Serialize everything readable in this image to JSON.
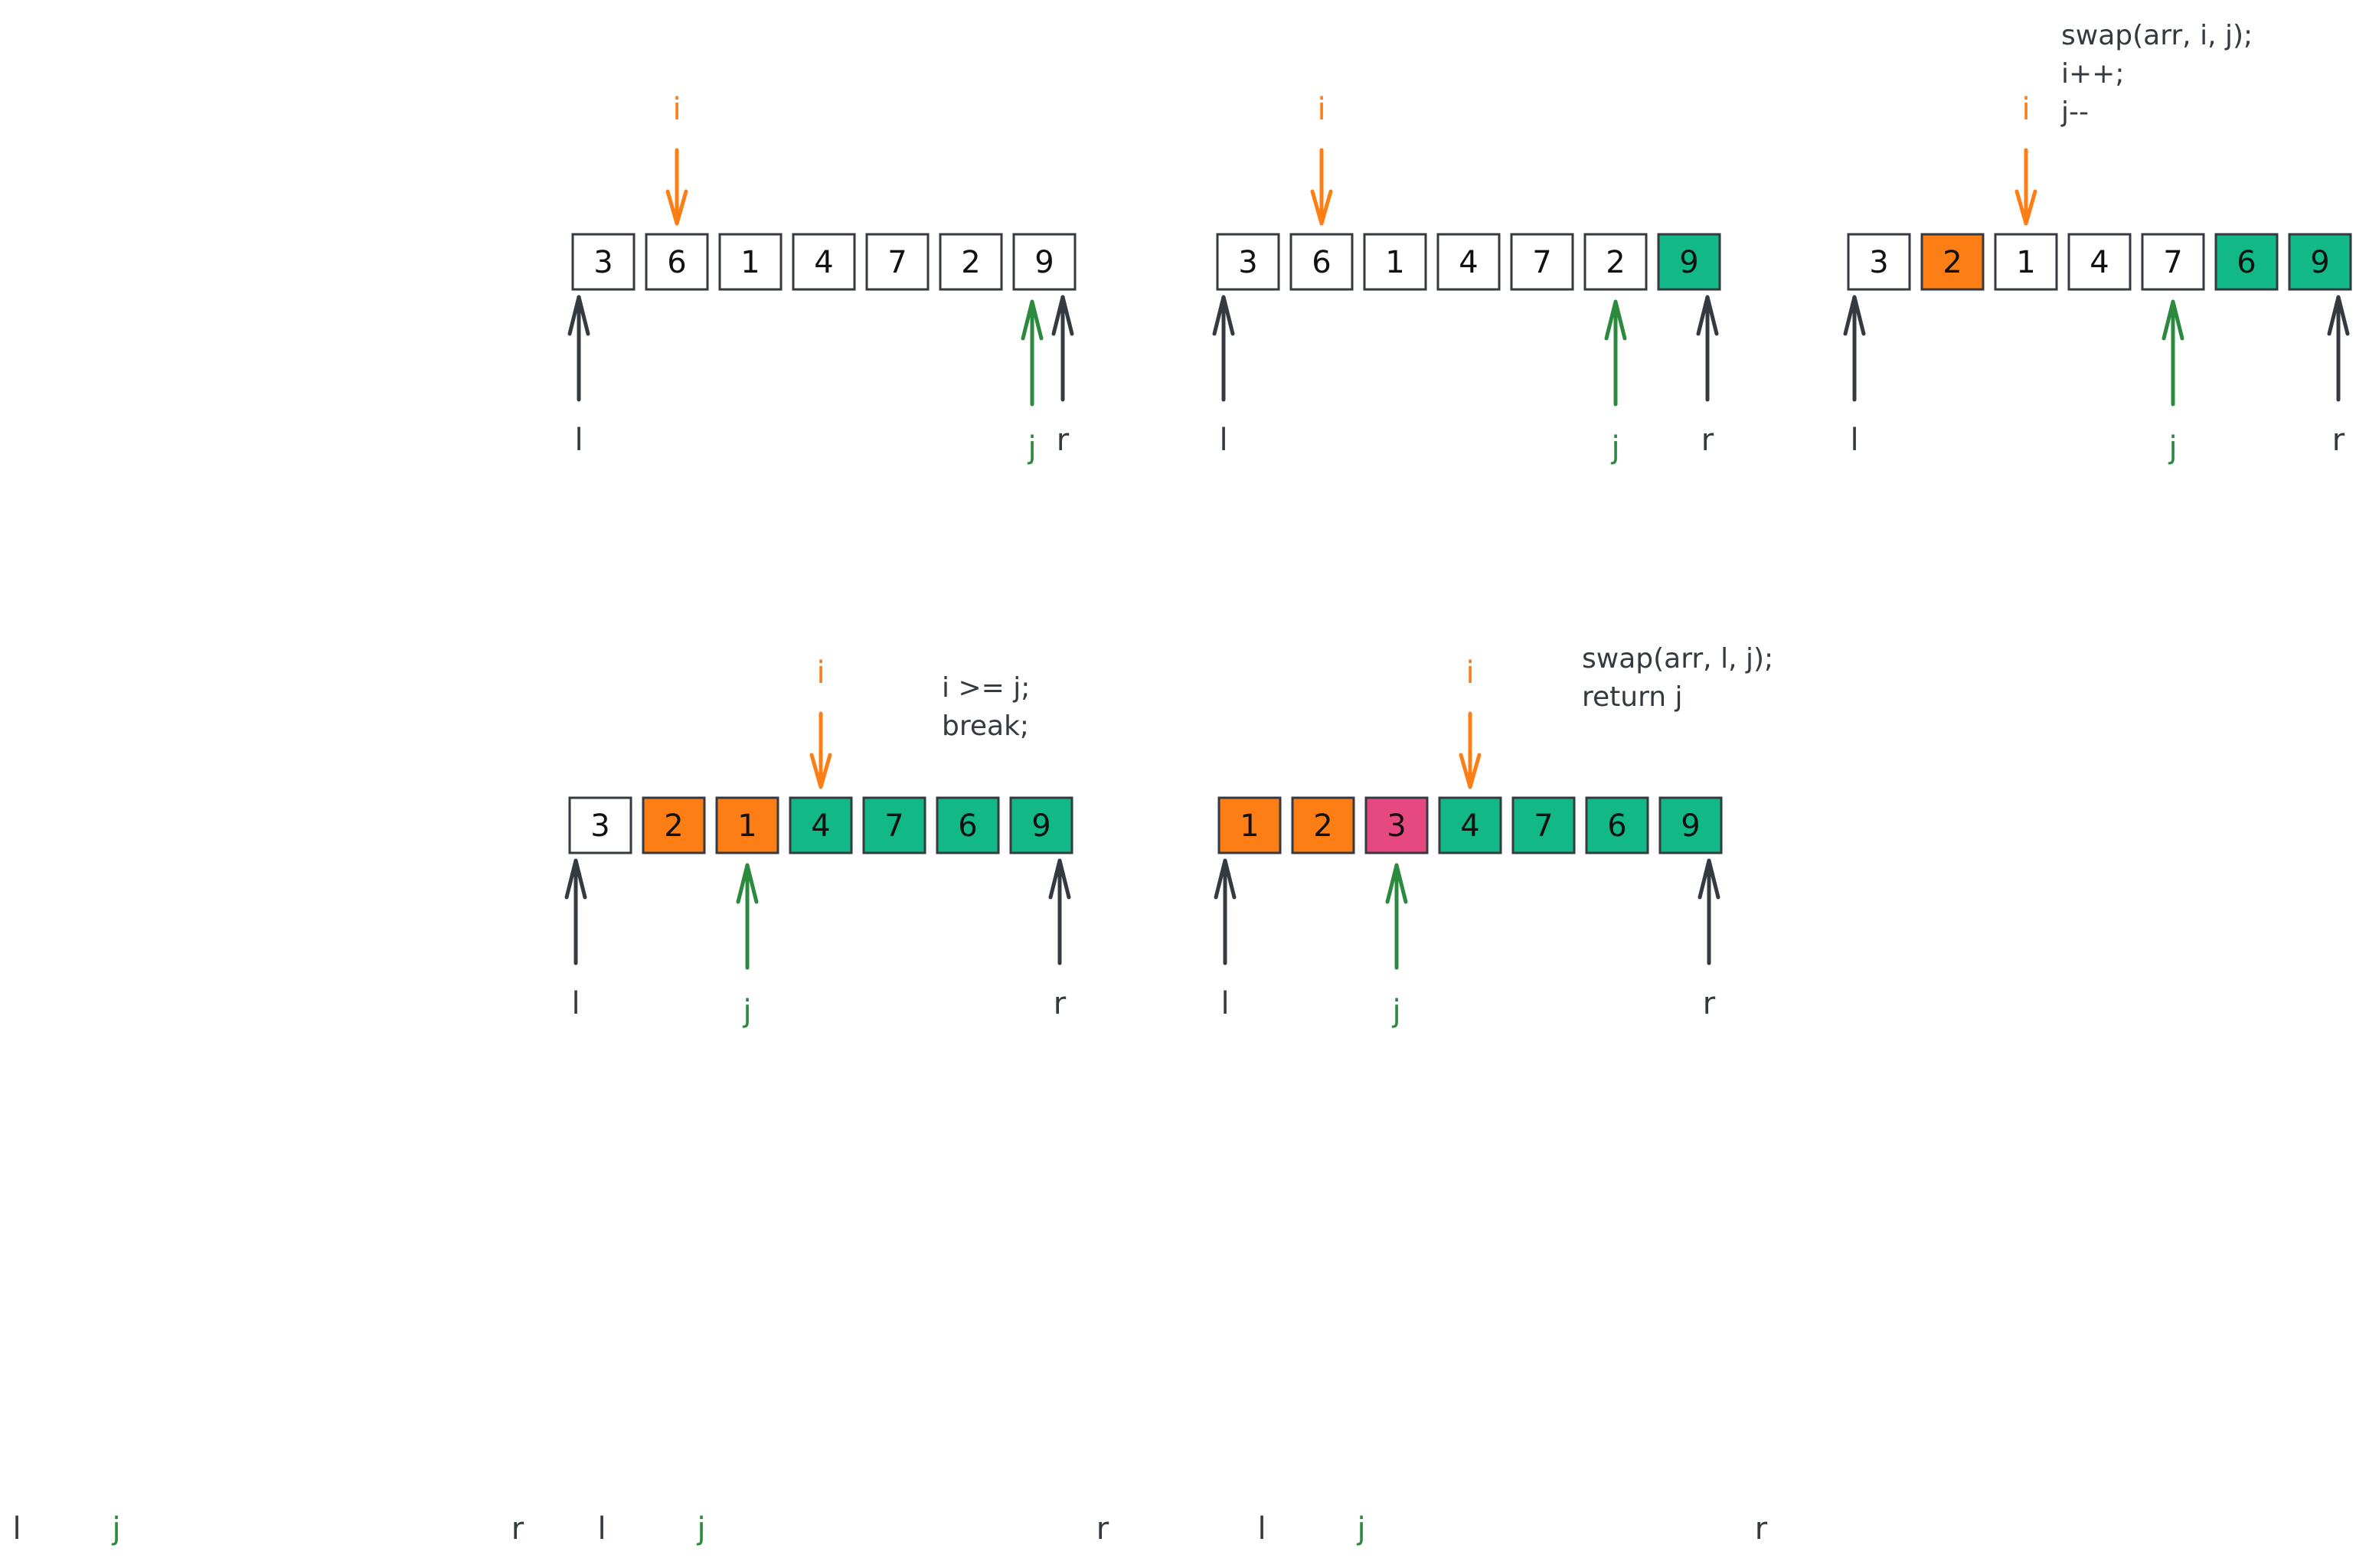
{
  "colors": {
    "ink": "#343a40",
    "orange": "#fd7e14",
    "green": "#2b8a3e",
    "teal": "#12b886",
    "pink": "#e64980",
    "white": "#ffffff"
  },
  "frames": [
    {
      "cells": [
        {
          "value": "3",
          "fill": "white"
        },
        {
          "value": "6",
          "fill": "white"
        },
        {
          "value": "1",
          "fill": "white"
        },
        {
          "value": "4",
          "fill": "white"
        },
        {
          "value": "7",
          "fill": "white"
        },
        {
          "value": "2",
          "fill": "white"
        },
        {
          "value": "9",
          "fill": "white"
        }
      ],
      "pointers": {
        "i_label": "i",
        "j_label": "j",
        "l_label": "l",
        "r_label": "r"
      },
      "note": []
    },
    {
      "cells": [
        {
          "value": "3",
          "fill": "white"
        },
        {
          "value": "6",
          "fill": "white"
        },
        {
          "value": "1",
          "fill": "white"
        },
        {
          "value": "4",
          "fill": "white"
        },
        {
          "value": "7",
          "fill": "white"
        },
        {
          "value": "2",
          "fill": "white"
        },
        {
          "value": "9",
          "fill": "teal"
        }
      ],
      "pointers": {
        "i_label": "i",
        "j_label": "j",
        "l_label": "l",
        "r_label": "r"
      },
      "note": []
    },
    {
      "cells": [
        {
          "value": "3",
          "fill": "white"
        },
        {
          "value": "2",
          "fill": "orange"
        },
        {
          "value": "1",
          "fill": "white"
        },
        {
          "value": "4",
          "fill": "white"
        },
        {
          "value": "7",
          "fill": "white"
        },
        {
          "value": "6",
          "fill": "teal"
        },
        {
          "value": "9",
          "fill": "teal"
        }
      ],
      "pointers": {
        "i_label": "i",
        "j_label": "j",
        "l_label": "l",
        "r_label": "r"
      },
      "note": [
        "swap(arr, i, j);",
        "i++;",
        "j--"
      ]
    },
    {
      "cells": [
        {
          "value": "3",
          "fill": "white"
        },
        {
          "value": "2",
          "fill": "orange"
        },
        {
          "value": "1",
          "fill": "orange"
        },
        {
          "value": "4",
          "fill": "teal"
        },
        {
          "value": "7",
          "fill": "teal"
        },
        {
          "value": "6",
          "fill": "teal"
        },
        {
          "value": "9",
          "fill": "teal"
        }
      ],
      "pointers": {
        "i_label": "i",
        "j_label": "j",
        "l_label": "l",
        "r_label": "r"
      },
      "note": [
        "i >= j;",
        "break;"
      ]
    },
    {
      "cells": [
        {
          "value": "1",
          "fill": "orange"
        },
        {
          "value": "2",
          "fill": "orange"
        },
        {
          "value": "3",
          "fill": "pink"
        },
        {
          "value": "4",
          "fill": "teal"
        },
        {
          "value": "7",
          "fill": "teal"
        },
        {
          "value": "6",
          "fill": "teal"
        },
        {
          "value": "9",
          "fill": "teal"
        }
      ],
      "pointers": {
        "i_label": "i",
        "j_label": "j",
        "l_label": "l",
        "r_label": "r"
      },
      "note": [
        "swap(arr, l, j);",
        "return j"
      ]
    }
  ],
  "footer_labels": [
    {
      "text": "l",
      "color": "ink"
    },
    {
      "text": "j",
      "color": "green"
    },
    {
      "text": "r",
      "color": "ink"
    },
    {
      "text": "l",
      "color": "ink"
    },
    {
      "text": "j",
      "color": "green"
    },
    {
      "text": "r",
      "color": "ink"
    },
    {
      "text": "l",
      "color": "ink"
    },
    {
      "text": "j",
      "color": "green"
    },
    {
      "text": "r",
      "color": "ink"
    }
  ]
}
